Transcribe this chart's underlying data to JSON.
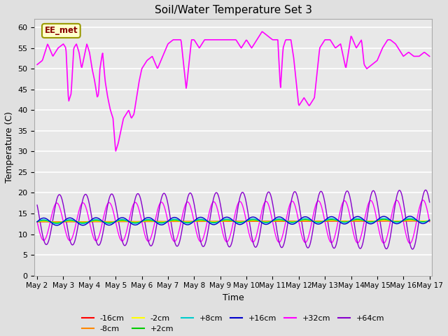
{
  "title": "Soil/Water Temperature Set 3",
  "xlabel": "Time",
  "ylabel": "Temperature (C)",
  "ylim": [
    0,
    62
  ],
  "yticks": [
    0,
    5,
    10,
    15,
    20,
    25,
    30,
    35,
    40,
    45,
    50,
    55,
    60
  ],
  "bg_color": "#e0e0e0",
  "plot_bg": "#e8e8e8",
  "annotation_text": "EE_met",
  "annotation_bg": "#ffffcc",
  "annotation_border": "#999900",
  "annotation_text_color": "#880000",
  "series_colors": {
    "-16cm": "#ff0000",
    "-8cm": "#ff8800",
    "-2cm": "#ffff00",
    "+2cm": "#00cc00",
    "+8cm": "#00cccc",
    "+16cm": "#0000cc",
    "+32cm": "#ff00ff",
    "+64cm": "#8800cc"
  },
  "legend_order": [
    "-16cm",
    "-8cm",
    "-2cm",
    "+2cm",
    "+8cm",
    "+16cm",
    "+32cm",
    "+64cm"
  ]
}
